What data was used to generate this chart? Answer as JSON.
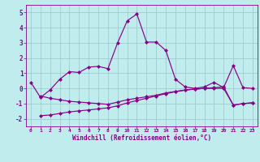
{
  "xlabel": "Windchill (Refroidissement éolien,°C)",
  "background_color": "#c0ecee",
  "grid_color": "#a0ccce",
  "line_color": "#880088",
  "xlim": [
    -0.5,
    23.5
  ],
  "ylim": [
    -2.5,
    5.5
  ],
  "xticks": [
    0,
    1,
    2,
    3,
    4,
    5,
    6,
    7,
    8,
    9,
    10,
    11,
    12,
    13,
    14,
    15,
    16,
    17,
    18,
    19,
    20,
    21,
    22,
    23
  ],
  "yticks": [
    -2,
    -1,
    0,
    1,
    2,
    3,
    4,
    5
  ],
  "line1_x": [
    0,
    1,
    2,
    3,
    4,
    5,
    6,
    7,
    8,
    9,
    10,
    11,
    12,
    13,
    14,
    15,
    16,
    17,
    18,
    19,
    20,
    21,
    22,
    23
  ],
  "line1_y": [
    0.4,
    -0.6,
    -0.1,
    0.6,
    1.1,
    1.05,
    1.4,
    1.45,
    1.3,
    3.0,
    4.45,
    4.9,
    3.05,
    3.05,
    2.5,
    0.6,
    0.1,
    0.0,
    0.1,
    0.4,
    0.05,
    1.5,
    0.05,
    0.0
  ],
  "line2_x": [
    1,
    2,
    3,
    4,
    5,
    6,
    7,
    8,
    9,
    10,
    11,
    12,
    13,
    14,
    15,
    16,
    17,
    18,
    19,
    20,
    21,
    22,
    23
  ],
  "line2_y": [
    -0.5,
    -0.65,
    -0.75,
    -0.85,
    -0.9,
    -0.95,
    -1.0,
    -1.05,
    -0.9,
    -0.75,
    -0.65,
    -0.55,
    -0.45,
    -0.3,
    -0.2,
    -0.1,
    -0.05,
    0.0,
    0.05,
    0.1,
    -1.1,
    -1.0,
    -0.95
  ],
  "line3_x": [
    1,
    2,
    3,
    4,
    5,
    6,
    7,
    8,
    9,
    10,
    11,
    12,
    13,
    14,
    15,
    16,
    17,
    18,
    19,
    20,
    21,
    22,
    23
  ],
  "line3_y": [
    -1.8,
    -1.75,
    -1.65,
    -1.55,
    -1.48,
    -1.42,
    -1.35,
    -1.28,
    -1.15,
    -0.95,
    -0.8,
    -0.65,
    -0.5,
    -0.35,
    -0.22,
    -0.12,
    -0.05,
    0.0,
    0.0,
    0.0,
    -1.1,
    -1.0,
    -0.95
  ]
}
